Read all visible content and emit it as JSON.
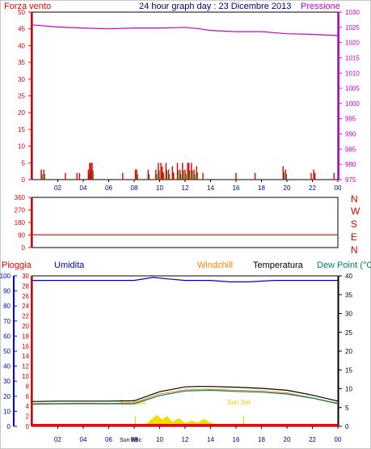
{
  "header": {
    "wind_speed_label": "Forza vento",
    "graph_title": "24 hour graph day : 23 Dicembre 2013",
    "pressure_label": "Pressione"
  },
  "lower_header": {
    "rain_label": "Pioggia",
    "humidity_label": "Umidita",
    "windchill_label": "Windchill",
    "temperature_label": "Temperatura",
    "dewpoint_label": "Dew Point (°C"
  },
  "direction_labels": [
    "N",
    "W",
    "S",
    "E",
    "N"
  ],
  "sun_labels": {
    "sunrise": "Sun Rise",
    "sunset": "Sun Set",
    "sunbb": "Sun BBc"
  },
  "colors": {
    "wind": "#e00000",
    "pressure": "#cc00cc",
    "title": "#000080",
    "humidity": "#0000cc",
    "windchill": "#ff8000",
    "temperature": "#000000",
    "dewpoint": "#008060",
    "rain": "#ff0000",
    "solar": "#f0e000"
  },
  "chart_data": [
    {
      "type": "line",
      "title": "24 hour graph day : 23 Dicembre 2013",
      "x_ticks": [
        "02",
        "04",
        "06",
        "08",
        "10",
        "12",
        "14",
        "16",
        "18",
        "20",
        "22",
        "00"
      ],
      "y_left": {
        "label": "Forza vento",
        "ticks": [
          0,
          5,
          10,
          15,
          20,
          25,
          30,
          35,
          40,
          45,
          50
        ],
        "ylim": [
          0,
          50
        ]
      },
      "y_right": {
        "label": "Pressione",
        "ticks": [
          975,
          980,
          985,
          990,
          995,
          1000,
          1005,
          1010,
          1015,
          1020,
          1025,
          1030
        ],
        "ylim": [
          975,
          1030
        ]
      },
      "series": [
        {
          "name": "Pressione",
          "x": [
            0,
            2,
            4,
            6,
            8,
            10,
            12,
            13,
            14,
            16,
            18,
            20,
            22,
            24
          ],
          "y": [
            1025.8,
            1025.1,
            1024.8,
            1024.5,
            1024.8,
            1024.8,
            1025.0,
            1024.6,
            1024.0,
            1023.6,
            1023.6,
            1022.9,
            1022.7,
            1022.3
          ]
        },
        {
          "name": "Forza vento",
          "x": [
            0.7,
            0.9,
            2.6,
            3.5,
            3.7,
            4.4,
            4.5,
            4.6,
            4.7,
            7.1,
            8.1,
            8.2,
            9.1,
            9.7,
            9.9,
            10.1,
            10.2,
            10.3,
            10.5,
            10.7,
            11.0,
            11.1,
            11.4,
            11.6,
            11.8,
            12.0,
            12.2,
            12.3,
            12.5,
            12.7,
            12.9,
            13.4,
            16.0,
            17.5,
            19.7,
            19.9,
            21.9,
            22.1,
            22.2,
            23.7
          ],
          "y": [
            3,
            3,
            2,
            2,
            2,
            3,
            5,
            5,
            5,
            2,
            3,
            3,
            3,
            3,
            5,
            5,
            4,
            2,
            5,
            3,
            4,
            2,
            5,
            3,
            5,
            3,
            5,
            5,
            5,
            3,
            4,
            2,
            2,
            2,
            4,
            3,
            2,
            3,
            2,
            2
          ]
        }
      ]
    },
    {
      "type": "line",
      "y_ticks": [
        0,
        90,
        180,
        270,
        360
      ],
      "ylim": [
        0,
        360
      ],
      "series": [
        {
          "name": "Direzione",
          "x": [
            0,
            24
          ],
          "y": [
            92,
            92
          ]
        }
      ]
    },
    {
      "type": "line",
      "x_ticks": [
        "02",
        "04",
        "06",
        "08",
        "10",
        "12",
        "14",
        "16",
        "18",
        "20",
        "22",
        "00"
      ],
      "y_left_humidity": {
        "label": "Umidita",
        "ticks": [
          0,
          10,
          20,
          30,
          40,
          50,
          60,
          70,
          80,
          90,
          100
        ],
        "ylim": [
          0,
          100
        ]
      },
      "y_left_rain": {
        "label": "Pioggia",
        "ticks": [
          0,
          2,
          4,
          6,
          8,
          10,
          12,
          14,
          16,
          18,
          20,
          22,
          24,
          26,
          28,
          30
        ],
        "ylim": [
          0,
          30
        ]
      },
      "y_right": {
        "ticks": [
          0,
          5,
          10,
          15,
          20,
          25,
          30,
          35,
          40
        ],
        "ylim": [
          0,
          40
        ]
      },
      "series": [
        {
          "name": "Umidita",
          "x": [
            0,
            8,
            9.5,
            10.6,
            12,
            14,
            15.5,
            17,
            19,
            24
          ],
          "y": [
            97,
            97,
            99,
            98,
            97,
            97,
            96,
            96,
            97,
            97
          ]
        },
        {
          "name": "Temperatura",
          "x": [
            0,
            2,
            4,
            6,
            8,
            10,
            12,
            13,
            14,
            16,
            18,
            20,
            22,
            24
          ],
          "y": [
            6.6,
            6.7,
            6.7,
            6.7,
            6.8,
            9.2,
            10.5,
            10.6,
            10.6,
            10.4,
            10.1,
            9.6,
            8.3,
            6.7
          ]
        },
        {
          "name": "Windchill",
          "x": [
            0,
            2,
            4,
            6,
            8,
            10,
            12,
            14,
            16,
            18,
            20,
            22,
            24
          ],
          "y": [
            6.1,
            6.1,
            6.2,
            6.1,
            6.3,
            8.6,
            9.7,
            9.9,
            9.6,
            9.4,
            8.9,
            7.6,
            6.2
          ]
        },
        {
          "name": "Dew Point",
          "x": [
            0,
            2,
            4,
            6,
            8,
            10,
            12,
            14,
            16,
            18,
            20,
            22,
            24
          ],
          "y": [
            5.9,
            6.0,
            6.0,
            6.0,
            6.0,
            8.2,
            9.4,
            9.6,
            9.3,
            9.1,
            8.6,
            7.5,
            6.0
          ]
        },
        {
          "name": "Solar",
          "x": [
            7.9,
            8.5,
            9.0,
            9.5,
            9.8,
            10.2,
            10.6,
            11.0,
            11.5,
            12.0,
            12.5,
            13.0,
            13.5,
            14.0,
            14.5,
            15.0,
            15.5,
            16.2
          ],
          "y": [
            0,
            0,
            0.8,
            2.3,
            3.0,
            1.8,
            2.8,
            1.2,
            2.2,
            0.9,
            1.5,
            1.0,
            2.0,
            0.9,
            0.6,
            0.2,
            0,
            0
          ]
        }
      ]
    }
  ]
}
